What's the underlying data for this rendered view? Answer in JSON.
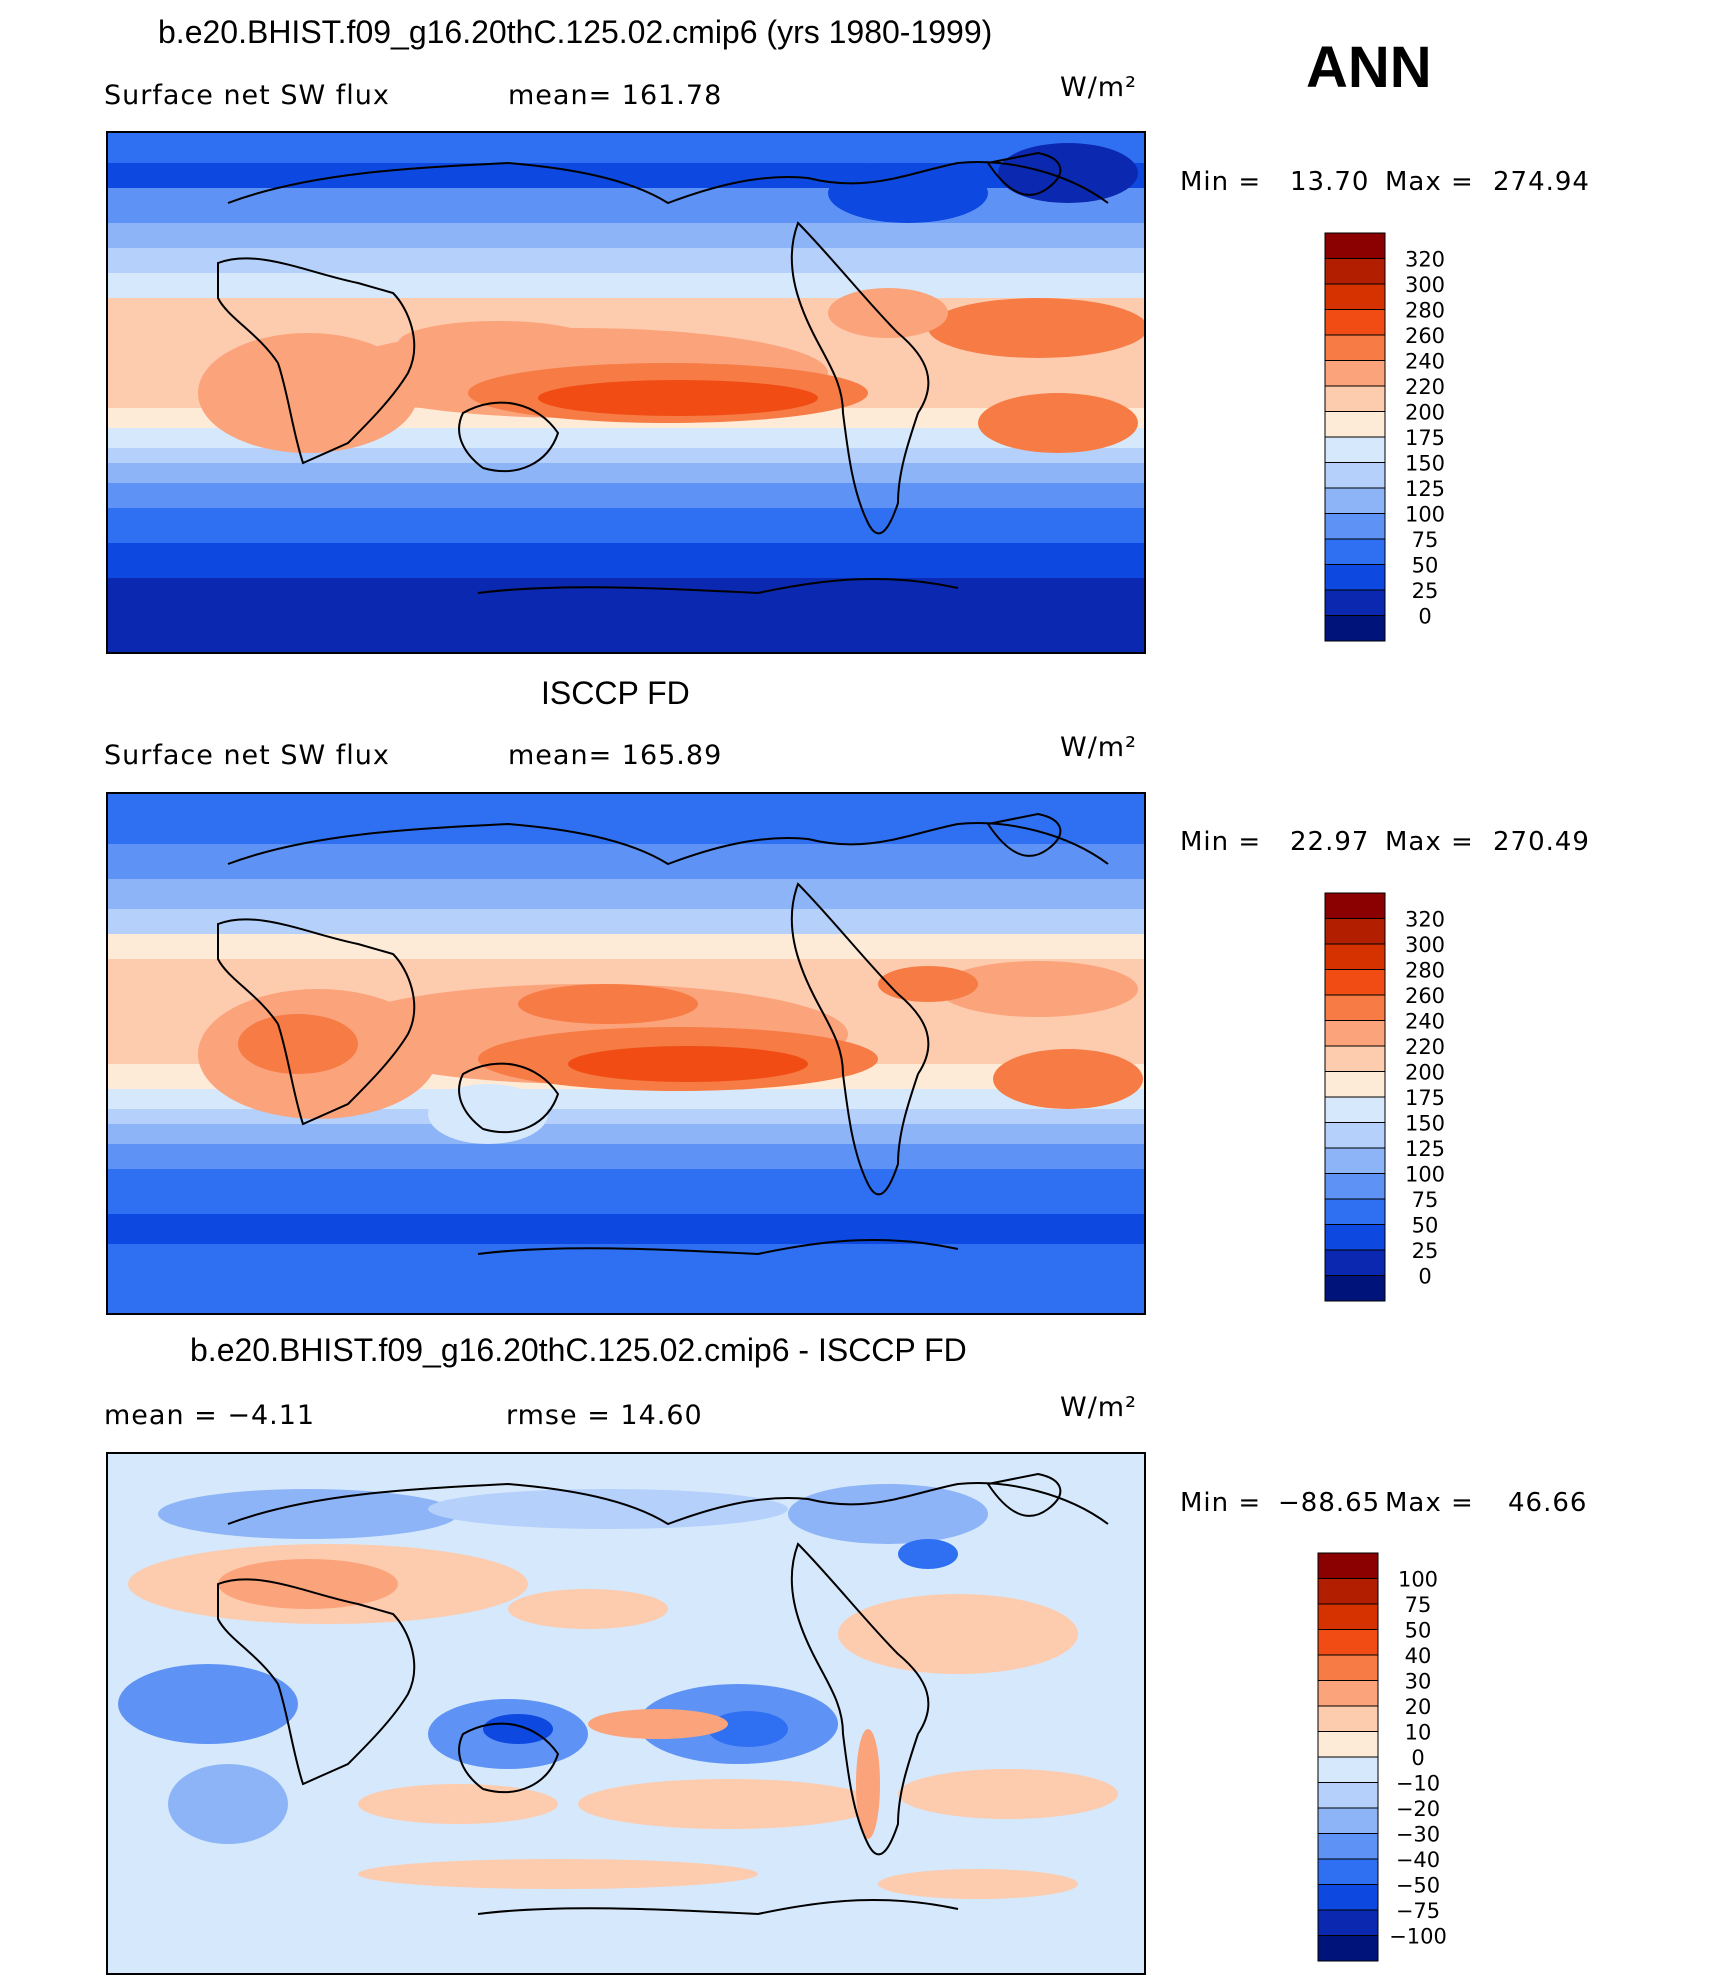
{
  "figure": {
    "season": "ANN",
    "units": "W/m²"
  },
  "panels": [
    {
      "title": "b.e20.BHIST.f09_g16.20thC.125.02.cmip6 (yrs 1980-1999)",
      "left_label": "Surface net SW flux",
      "center_label": "mean=  161.78",
      "units": "W/m²",
      "min_label": "Min  =",
      "min_value": "13.70",
      "max_label": "Max  =",
      "max_value": "274.94",
      "colorbar": {
        "levels": [
          "320",
          "300",
          "280",
          "260",
          "240",
          "220",
          "200",
          "175",
          "150",
          "125",
          "100",
          "75",
          "50",
          "25",
          "0"
        ],
        "colors": [
          "#8b0000",
          "#b21e00",
          "#d63200",
          "#f04c14",
          "#f77b45",
          "#fba37a",
          "#fdcbae",
          "#fdebd8",
          "#d6e8fb",
          "#b4d0fb",
          "#8db4f7",
          "#5e93f5",
          "#2f6ff2",
          "#0d48e0",
          "#0a28b0",
          "#00137a"
        ]
      }
    },
    {
      "title": "ISCCP FD",
      "left_label": "Surface net SW flux",
      "center_label": "mean=  165.89",
      "units": "W/m²",
      "min_label": "Min  =",
      "min_value": "22.97",
      "max_label": "Max  =",
      "max_value": "270.49",
      "colorbar": {
        "levels": [
          "320",
          "300",
          "280",
          "260",
          "240",
          "220",
          "200",
          "175",
          "150",
          "125",
          "100",
          "75",
          "50",
          "25",
          "0"
        ],
        "colors": [
          "#8b0000",
          "#b21e00",
          "#d63200",
          "#f04c14",
          "#f77b45",
          "#fba37a",
          "#fdcbae",
          "#fdebd8",
          "#d6e8fb",
          "#b4d0fb",
          "#8db4f7",
          "#5e93f5",
          "#2f6ff2",
          "#0d48e0",
          "#0a28b0",
          "#00137a"
        ]
      }
    },
    {
      "title": "b.e20.BHIST.f09_g16.20thC.125.02.cmip6 - ISCCP FD",
      "left_label": "mean  =    −4.11",
      "center_label": "rmse  =    14.60",
      "units": "W/m²",
      "min_label": "Min  =",
      "min_value": "−88.65",
      "max_label": "Max  =",
      "max_value": "46.66",
      "colorbar": {
        "levels": [
          "100",
          "75",
          "50",
          "40",
          "30",
          "20",
          "10",
          "0",
          "−10",
          "−20",
          "−30",
          "−40",
          "−50",
          "−75",
          "−100"
        ],
        "colors": [
          "#8b0000",
          "#b21e00",
          "#d63200",
          "#f04c14",
          "#f77b45",
          "#fba37a",
          "#fdcbae",
          "#fdebd8",
          "#d6e8fb",
          "#b4d0fb",
          "#8db4f7",
          "#5e93f5",
          "#2f6ff2",
          "#0d48e0",
          "#0a28b0",
          "#00137a"
        ]
      }
    }
  ]
}
